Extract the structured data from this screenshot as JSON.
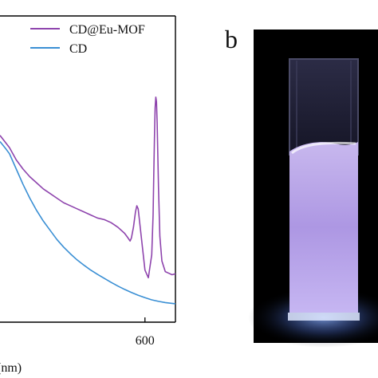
{
  "panel_b": {
    "label": "b"
  },
  "chart_data": {
    "type": "line",
    "xlabel": "(nm)",
    "ylabel": "",
    "xlim": [
      386,
      645
    ],
    "ylim": [
      0,
      100
    ],
    "grid": false,
    "legend_position": "top-right",
    "x_ticks": [
      600
    ],
    "x_tick_labels": [
      "600"
    ],
    "series": [
      {
        "name": "CD@Eu-MOF",
        "color": "#8e44ad",
        "x": [
          386,
          400,
          410,
          420,
          430,
          440,
          450,
          460,
          470,
          480,
          490,
          500,
          510,
          520,
          530,
          540,
          550,
          560,
          570,
          575,
          578,
          580,
          583,
          586,
          588,
          590,
          592,
          595,
          600,
          605,
          610,
          612,
          613,
          614,
          615,
          616,
          617,
          618,
          620,
          622,
          625,
          630,
          635,
          640,
          645
        ],
        "y": [
          61,
          57,
          53,
          50,
          47.5,
          45.5,
          43.5,
          42,
          40.5,
          39,
          38,
          37,
          36,
          35,
          34,
          33.5,
          32.5,
          31,
          29,
          27.5,
          26.5,
          27.5,
          31,
          36,
          38,
          37,
          33,
          27,
          17,
          14.5,
          22,
          35,
          48,
          60,
          70,
          73.5,
          72,
          65,
          44,
          28,
          20,
          16.5,
          16,
          15.5,
          15.8
        ]
      },
      {
        "name": "CD",
        "color": "#3a8fd4",
        "x": [
          386,
          395,
          400,
          410,
          420,
          430,
          440,
          450,
          460,
          470,
          480,
          490,
          500,
          510,
          520,
          530,
          540,
          550,
          560,
          570,
          580,
          590,
          600,
          610,
          620,
          630,
          645
        ],
        "y": [
          59,
          56.5,
          55,
          50,
          45,
          40.5,
          36.5,
          33,
          30,
          27,
          24.5,
          22.3,
          20.3,
          18.6,
          17,
          15.6,
          14.3,
          13,
          11.8,
          10.7,
          9.7,
          8.8,
          8,
          7.3,
          6.8,
          6.4,
          6
        ]
      }
    ]
  }
}
